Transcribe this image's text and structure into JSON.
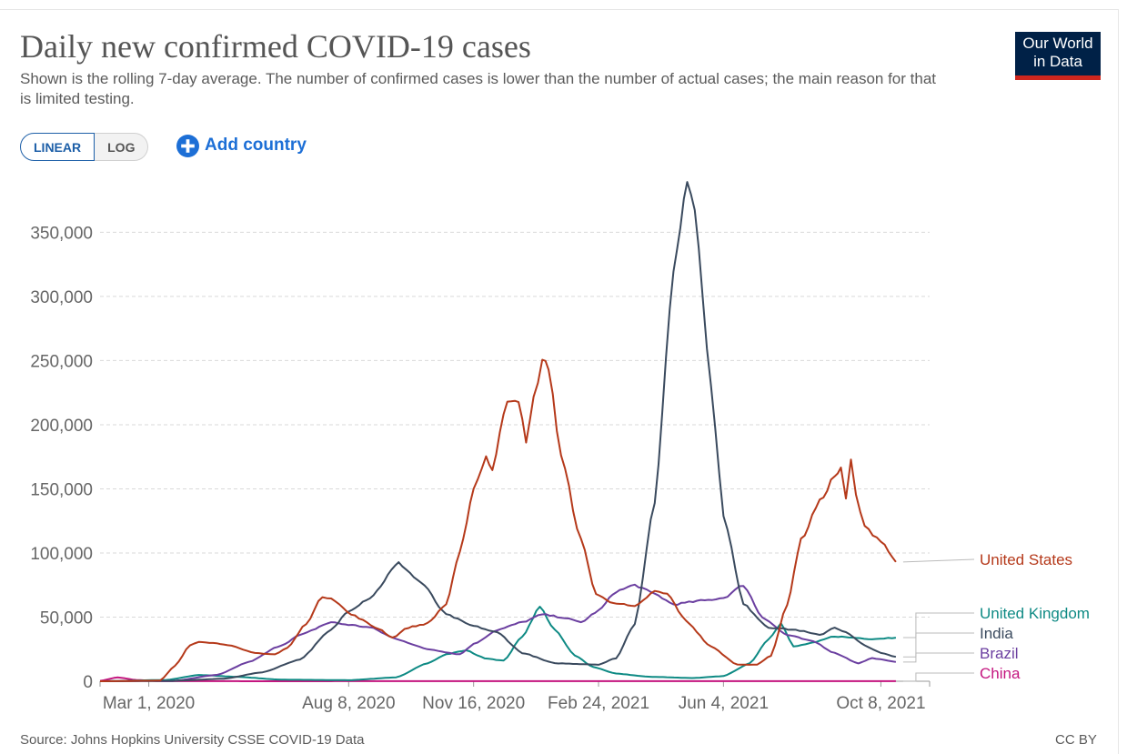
{
  "header": {
    "title": "Daily new confirmed COVID-19 cases",
    "subtitle": "Shown is the rolling 7-day average. The number of confirmed cases is lower than the number of actual cases; the main reason for that is limited testing.",
    "logo_line1": "Our World",
    "logo_line2": "in Data"
  },
  "controls": {
    "linear_label": "LINEAR",
    "log_label": "LOG",
    "add_country_label": "Add country",
    "active_scale": "linear"
  },
  "footer": {
    "source": "Source: Johns Hopkins University CSSE COVID-19 Data",
    "license": "CC BY"
  },
  "colors": {
    "United States": "#b5391a",
    "United Kingdom": "#0e8a84",
    "India": "#3a4a5e",
    "Brazil": "#6b3fa0",
    "China": "#c4167f",
    "accent": "#1d6fd6",
    "logo_bg": "#002147",
    "logo_stripe": "#ce261e"
  },
  "chart_data": {
    "type": "line",
    "title": "Daily new confirmed COVID-19 cases",
    "xlabel": "",
    "ylabel": "",
    "x_range": [
      "2020-01-22",
      "2021-11-16"
    ],
    "ylim": [
      0,
      390000
    ],
    "y_ticks": [
      0,
      50000,
      100000,
      150000,
      200000,
      250000,
      300000,
      350000
    ],
    "y_tick_labels": [
      "0",
      "50,000",
      "100,000",
      "150,000",
      "200,000",
      "250,000",
      "300,000",
      "350,000"
    ],
    "x_ticks": [
      "2020-03-01",
      "2020-08-08",
      "2020-11-16",
      "2021-02-24",
      "2021-06-04",
      "2021-10-08"
    ],
    "x_tick_labels": [
      "Mar 1, 2020",
      "Aug 8, 2020",
      "Nov 16, 2020",
      "Feb 24, 2021",
      "Jun 4, 2021",
      "Oct 8, 2021"
    ],
    "grid": "horizontal dashed",
    "legend": "right, labels at line ends",
    "series": [
      {
        "name": "United States",
        "points": [
          [
            "2020-01-22",
            0
          ],
          [
            "2020-03-10",
            500
          ],
          [
            "2020-03-22",
            12000
          ],
          [
            "2020-04-03",
            28000
          ],
          [
            "2020-04-10",
            31000
          ],
          [
            "2020-04-30",
            29000
          ],
          [
            "2020-05-25",
            22000
          ],
          [
            "2020-06-10",
            21000
          ],
          [
            "2020-06-20",
            26000
          ],
          [
            "2020-07-05",
            45000
          ],
          [
            "2020-07-18",
            66000
          ],
          [
            "2020-07-25",
            65000
          ],
          [
            "2020-08-10",
            52000
          ],
          [
            "2020-09-01",
            41000
          ],
          [
            "2020-09-12",
            34000
          ],
          [
            "2020-09-25",
            42000
          ],
          [
            "2020-10-10",
            45000
          ],
          [
            "2020-10-25",
            60000
          ],
          [
            "2020-11-05",
            100000
          ],
          [
            "2020-11-16",
            150000
          ],
          [
            "2020-11-26",
            175000
          ],
          [
            "2020-12-01",
            165000
          ],
          [
            "2020-12-13",
            220000
          ],
          [
            "2020-12-22",
            220000
          ],
          [
            "2020-12-28",
            185000
          ],
          [
            "2021-01-03",
            220000
          ],
          [
            "2021-01-10",
            250000
          ],
          [
            "2021-01-15",
            245000
          ],
          [
            "2021-01-25",
            175000
          ],
          [
            "2021-02-10",
            110000
          ],
          [
            "2021-02-22",
            68000
          ],
          [
            "2021-03-05",
            62000
          ],
          [
            "2021-03-25",
            58000
          ],
          [
            "2021-04-10",
            70000
          ],
          [
            "2021-04-20",
            68000
          ],
          [
            "2021-05-05",
            47000
          ],
          [
            "2021-05-25",
            27000
          ],
          [
            "2021-06-15",
            13000
          ],
          [
            "2021-07-01",
            13000
          ],
          [
            "2021-07-12",
            20000
          ],
          [
            "2021-07-25",
            60000
          ],
          [
            "2021-08-05",
            110000
          ],
          [
            "2021-08-20",
            140000
          ],
          [
            "2021-09-01",
            160000
          ],
          [
            "2021-09-06",
            165000
          ],
          [
            "2021-09-10",
            142000
          ],
          [
            "2021-09-14",
            172000
          ],
          [
            "2021-09-18",
            145000
          ],
          [
            "2021-09-25",
            120000
          ],
          [
            "2021-10-08",
            110000
          ],
          [
            "2021-10-20",
            93000
          ]
        ]
      },
      {
        "name": "United Kingdom",
        "points": [
          [
            "2020-01-22",
            0
          ],
          [
            "2020-03-15",
            1000
          ],
          [
            "2020-04-10",
            4900
          ],
          [
            "2020-05-10",
            3500
          ],
          [
            "2020-06-15",
            1200
          ],
          [
            "2020-08-08",
            800
          ],
          [
            "2020-09-15",
            3000
          ],
          [
            "2020-10-10",
            14000
          ],
          [
            "2020-10-25",
            21000
          ],
          [
            "2020-11-10",
            24000
          ],
          [
            "2020-11-25",
            18000
          ],
          [
            "2020-12-10",
            16000
          ],
          [
            "2020-12-25",
            35000
          ],
          [
            "2021-01-08",
            58000
          ],
          [
            "2021-01-20",
            40000
          ],
          [
            "2021-02-05",
            20000
          ],
          [
            "2021-02-20",
            11000
          ],
          [
            "2021-03-10",
            6000
          ],
          [
            "2021-04-05",
            3500
          ],
          [
            "2021-05-10",
            2500
          ],
          [
            "2021-06-04",
            4000
          ],
          [
            "2021-06-25",
            14000
          ],
          [
            "2021-07-10",
            33000
          ],
          [
            "2021-07-20",
            45000
          ],
          [
            "2021-07-30",
            27000
          ],
          [
            "2021-08-15",
            30000
          ],
          [
            "2021-09-01",
            35000
          ],
          [
            "2021-09-15",
            34000
          ],
          [
            "2021-10-01",
            33000
          ],
          [
            "2021-10-20",
            34000
          ]
        ]
      },
      {
        "name": "India",
        "points": [
          [
            "2020-01-22",
            0
          ],
          [
            "2020-03-20",
            300
          ],
          [
            "2020-04-30",
            2000
          ],
          [
            "2020-05-31",
            7000
          ],
          [
            "2020-06-30",
            17000
          ],
          [
            "2020-07-25",
            40000
          ],
          [
            "2020-08-08",
            55000
          ],
          [
            "2020-08-25",
            65000
          ],
          [
            "2020-09-17",
            92000
          ],
          [
            "2020-10-05",
            77000
          ],
          [
            "2020-10-25",
            52000
          ],
          [
            "2020-11-16",
            43000
          ],
          [
            "2020-12-05",
            38000
          ],
          [
            "2020-12-25",
            22000
          ],
          [
            "2021-01-20",
            14000
          ],
          [
            "2021-02-24",
            13000
          ],
          [
            "2021-03-10",
            18000
          ],
          [
            "2021-03-25",
            45000
          ],
          [
            "2021-04-10",
            140000
          ],
          [
            "2021-04-25",
            320000
          ],
          [
            "2021-05-06",
            391000
          ],
          [
            "2021-05-12",
            370000
          ],
          [
            "2021-05-25",
            230000
          ],
          [
            "2021-06-04",
            130000
          ],
          [
            "2021-06-20",
            60000
          ],
          [
            "2021-07-10",
            42000
          ],
          [
            "2021-08-01",
            40000
          ],
          [
            "2021-08-20",
            36000
          ],
          [
            "2021-09-01",
            42000
          ],
          [
            "2021-09-10",
            38000
          ],
          [
            "2021-09-25",
            28000
          ],
          [
            "2021-10-08",
            22000
          ],
          [
            "2021-10-20",
            19000
          ]
        ]
      },
      {
        "name": "Brazil",
        "points": [
          [
            "2020-01-22",
            0
          ],
          [
            "2020-03-20",
            200
          ],
          [
            "2020-04-25",
            5000
          ],
          [
            "2020-05-20",
            15000
          ],
          [
            "2020-06-15",
            28000
          ],
          [
            "2020-06-30",
            36000
          ],
          [
            "2020-07-25",
            46000
          ],
          [
            "2020-08-08",
            44000
          ],
          [
            "2020-08-25",
            42000
          ],
          [
            "2020-09-15",
            33000
          ],
          [
            "2020-10-10",
            25000
          ],
          [
            "2020-11-05",
            21000
          ],
          [
            "2020-11-16",
            29000
          ],
          [
            "2020-12-05",
            40000
          ],
          [
            "2020-12-25",
            46000
          ],
          [
            "2021-01-10",
            52000
          ],
          [
            "2021-01-25",
            50000
          ],
          [
            "2021-02-10",
            46000
          ],
          [
            "2021-02-24",
            55000
          ],
          [
            "2021-03-10",
            70000
          ],
          [
            "2021-03-25",
            75000
          ],
          [
            "2021-04-10",
            68000
          ],
          [
            "2021-04-25",
            60000
          ],
          [
            "2021-05-20",
            63000
          ],
          [
            "2021-06-04",
            65000
          ],
          [
            "2021-06-20",
            75000
          ],
          [
            "2021-07-05",
            50000
          ],
          [
            "2021-07-25",
            36000
          ],
          [
            "2021-08-15",
            31000
          ],
          [
            "2021-09-01",
            22000
          ],
          [
            "2021-09-20",
            14000
          ],
          [
            "2021-10-01",
            18000
          ],
          [
            "2021-10-20",
            15000
          ]
        ]
      },
      {
        "name": "China",
        "points": [
          [
            "2020-01-22",
            300
          ],
          [
            "2020-02-05",
            3000
          ],
          [
            "2020-02-20",
            1000
          ],
          [
            "2020-03-10",
            100
          ],
          [
            "2020-06-01",
            20
          ],
          [
            "2021-01-15",
            100
          ],
          [
            "2021-08-01",
            100
          ],
          [
            "2021-10-20",
            50
          ]
        ]
      }
    ]
  }
}
